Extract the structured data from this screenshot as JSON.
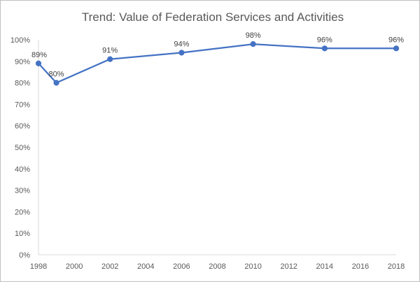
{
  "chart_data": {
    "type": "line",
    "title": "Trend: Value of Federation Services and Activities",
    "xlabel": "",
    "ylabel": "",
    "xlim": [
      1998,
      2018
    ],
    "ylim": [
      0,
      100
    ],
    "x_ticks": [
      "1998",
      "2000",
      "2002",
      "2004",
      "2006",
      "2008",
      "2010",
      "2012",
      "2014",
      "2016",
      "2018"
    ],
    "y_ticks": [
      "0%",
      "10%",
      "20%",
      "30%",
      "40%",
      "50%",
      "60%",
      "70%",
      "80%",
      "90%",
      "100%"
    ],
    "grid": false,
    "legend": "none",
    "series": [
      {
        "color": "#4472c4",
        "x": [
          1998,
          1999,
          2002,
          2006,
          2010,
          2014,
          2018
        ],
        "values": [
          89,
          80,
          91,
          94,
          98,
          96,
          96
        ],
        "labels": [
          "89%",
          "80%",
          "91%",
          "94%",
          "98%",
          "96%",
          "96%"
        ]
      }
    ]
  }
}
